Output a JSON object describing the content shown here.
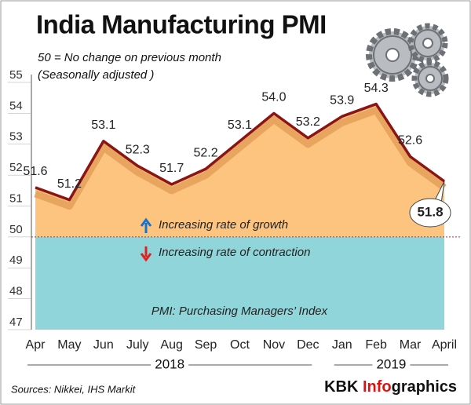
{
  "chart_data": {
    "type": "area-line",
    "title": "India Manufacturing PMI",
    "subtitle": [
      "50 = No change on previous month",
      "(Seasonally adjusted )"
    ],
    "categories": [
      "Apr",
      "May",
      "Jun",
      "July",
      "Aug",
      "Sep",
      "Oct",
      "Nov",
      "Dec",
      "Jan",
      "Feb",
      "Mar",
      "April"
    ],
    "values": [
      51.6,
      51.2,
      53.1,
      52.3,
      51.7,
      52.2,
      53.1,
      54.0,
      53.2,
      53.9,
      54.3,
      52.6,
      51.8
    ],
    "value_labels": [
      "51.6",
      "51.2",
      "53.1",
      "52.3",
      "51.7",
      "52.2",
      "53.1",
      "54.0",
      "53.2",
      "53.9",
      "54.3",
      "52.6",
      "51.8"
    ],
    "year_groups": [
      {
        "label": "2018",
        "range": [
          0,
          8
        ]
      },
      {
        "label": "2019",
        "range": [
          9,
          12
        ]
      }
    ],
    "ylim": [
      47,
      55
    ],
    "yticks": [
      47,
      48,
      49,
      50,
      51,
      52,
      53,
      54,
      55
    ],
    "threshold": 50,
    "line_color": "#8b1414",
    "growth_color": "#fcc47e",
    "contraction_color": "#90d5d9",
    "annotations": {
      "growth": "Increasing rate of growth",
      "contraction": "Increasing rate of contraction",
      "definition": "PMI: Purchasing Managers’ Index"
    },
    "source": "Sources: Nikkei, IHS Markit",
    "brand": [
      "KBK ",
      "Info",
      "graphics"
    ]
  }
}
